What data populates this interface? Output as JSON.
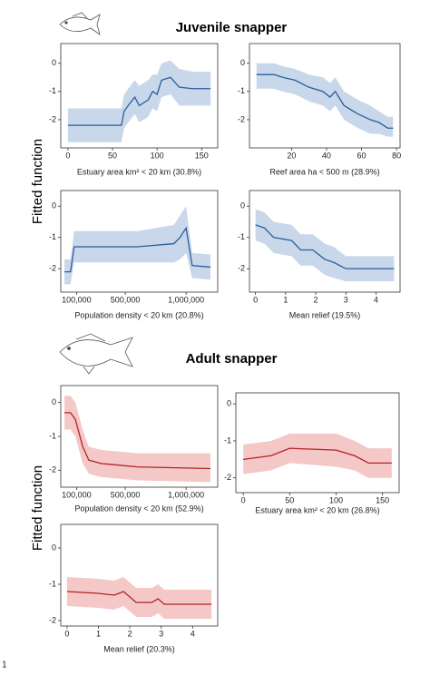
{
  "sections": [
    {
      "title": "Juvenile snapper",
      "y_label": "Fitted function"
    },
    {
      "title": "Adult snapper",
      "y_label": "Fitted function"
    }
  ],
  "figure_number": "1",
  "chart_data": [
    {
      "type": "line",
      "x_label": "Estuary area  km² < 20 km (30.8%)",
      "x": [
        0,
        30,
        60,
        63,
        70,
        75,
        80,
        90,
        95,
        100,
        105,
        115,
        125,
        140,
        160
      ],
      "series": [
        {
          "color": "#2b5c9e",
          "band_color": "#c8d8ea",
          "values": [
            -2.2,
            -2.2,
            -2.2,
            -1.7,
            -1.4,
            -1.2,
            -1.5,
            -1.3,
            -1.0,
            -1.1,
            -0.6,
            -0.5,
            -0.85,
            -0.9,
            -0.9
          ],
          "upper": [
            -1.6,
            -1.6,
            -1.6,
            -1.1,
            -0.8,
            -0.6,
            -0.8,
            -0.6,
            -0.4,
            -0.4,
            0.0,
            0.1,
            -0.2,
            -0.3,
            -0.3
          ],
          "lower": [
            -2.8,
            -2.8,
            -2.8,
            -2.3,
            -2.0,
            -1.8,
            -2.1,
            -1.9,
            -1.6,
            -1.7,
            -1.2,
            -1.1,
            -1.5,
            -1.5,
            -1.5
          ]
        }
      ],
      "xlim": [
        -8,
        168
      ],
      "xticks": [
        0,
        50,
        100,
        150
      ],
      "ylim": [
        -3.0,
        0.7
      ],
      "yticks": [
        -2,
        -1,
        0
      ]
    },
    {
      "type": "line",
      "x_label": "Reef area ha < 500 m (28.9%)",
      "x": [
        0,
        10,
        15,
        22,
        30,
        38,
        42,
        45,
        50,
        58,
        65,
        70,
        75,
        78
      ],
      "series": [
        {
          "color": "#2b5c9e",
          "band_color": "#c8d8ea",
          "values": [
            -0.4,
            -0.4,
            -0.5,
            -0.6,
            -0.85,
            -1.0,
            -1.2,
            -1.0,
            -1.5,
            -1.8,
            -2.0,
            -2.1,
            -2.3,
            -2.3
          ],
          "upper": [
            0.0,
            0.0,
            -0.1,
            -0.2,
            -0.4,
            -0.5,
            -0.7,
            -0.5,
            -1.0,
            -1.3,
            -1.5,
            -1.7,
            -1.9,
            -1.9
          ],
          "lower": [
            -0.9,
            -0.9,
            -1.0,
            -1.1,
            -1.35,
            -1.5,
            -1.7,
            -1.5,
            -2.0,
            -2.3,
            -2.5,
            -2.5,
            -2.6,
            -2.6
          ]
        }
      ],
      "xlim": [
        -4,
        82
      ],
      "xticks": [
        20,
        40,
        60,
        80
      ],
      "ylim": [
        -3.0,
        0.7
      ],
      "yticks": [
        -2,
        -1,
        0
      ]
    },
    {
      "type": "line",
      "x_label": "Population density < 20 km (20.8%)",
      "x": [
        0,
        50000,
        80000,
        300000,
        600000,
        900000,
        950000,
        1000000,
        1050000,
        1200000
      ],
      "series": [
        {
          "color": "#2b5c9e",
          "band_color": "#c8d8ea",
          "values": [
            -2.1,
            -2.1,
            -1.3,
            -1.3,
            -1.3,
            -1.2,
            -1.0,
            -0.7,
            -1.9,
            -1.95
          ],
          "upper": [
            -1.7,
            -1.7,
            -0.8,
            -0.8,
            -0.8,
            -0.6,
            -0.3,
            0.0,
            -1.5,
            -1.55
          ],
          "lower": [
            -2.5,
            -2.5,
            -1.8,
            -1.8,
            -1.8,
            -1.8,
            -1.7,
            -1.5,
            -2.3,
            -2.35
          ]
        }
      ],
      "xlim": [
        -30000,
        1260000
      ],
      "xticks": [
        {
          "value": 100000,
          "label": "100,000"
        },
        {
          "value": 500000,
          "label": "500,000"
        },
        {
          "value": 1000000,
          "label": "1,000,000"
        }
      ],
      "ylim": [
        -2.75,
        0.5
      ],
      "yticks": [
        -2,
        -1,
        0
      ]
    },
    {
      "type": "line",
      "x_label": "Mean relief (19.5%)",
      "x": [
        0,
        0.3,
        0.6,
        1.2,
        1.5,
        1.9,
        2.3,
        2.6,
        3.0,
        4.6
      ],
      "series": [
        {
          "color": "#2b5c9e",
          "band_color": "#c8d8ea",
          "values": [
            -0.6,
            -0.7,
            -1.0,
            -1.1,
            -1.4,
            -1.4,
            -1.7,
            -1.8,
            -2.0,
            -2.0
          ],
          "upper": [
            -0.1,
            -0.2,
            -0.5,
            -0.6,
            -0.9,
            -0.9,
            -1.2,
            -1.3,
            -1.6,
            -1.6
          ],
          "lower": [
            -1.1,
            -1.2,
            -1.5,
            -1.6,
            -1.9,
            -1.9,
            -2.2,
            -2.3,
            -2.4,
            -2.4
          ]
        }
      ],
      "xlim": [
        -0.2,
        4.8
      ],
      "xticks": [
        0,
        1,
        2,
        3,
        4
      ],
      "ylim": [
        -2.75,
        0.5
      ],
      "yticks": [
        -2,
        -1,
        0
      ]
    },
    {
      "type": "line",
      "x_label": "Population density < 20 km (52.9%)",
      "x": [
        0,
        50000,
        90000,
        150000,
        200000,
        300000,
        600000,
        1200000
      ],
      "series": [
        {
          "color": "#b22222",
          "band_color": "#f5c8c8",
          "values": [
            -0.3,
            -0.3,
            -0.5,
            -1.3,
            -1.7,
            -1.8,
            -1.9,
            -1.95
          ],
          "upper": [
            0.2,
            0.2,
            0.0,
            -0.8,
            -1.3,
            -1.4,
            -1.5,
            -1.5
          ],
          "lower": [
            -0.8,
            -0.8,
            -1.0,
            -1.8,
            -2.1,
            -2.2,
            -2.3,
            -2.35
          ]
        }
      ],
      "xlim": [
        -30000,
        1260000
      ],
      "xticks": [
        {
          "value": 100000,
          "label": "100,000"
        },
        {
          "value": 500000,
          "label": "500,000"
        },
        {
          "value": 1000000,
          "label": "1,000,000"
        }
      ],
      "ylim": [
        -2.5,
        0.5
      ],
      "yticks": [
        -2,
        -1,
        0
      ]
    },
    {
      "type": "line",
      "x_label": "Estuary area  km²  < 20 km (26.8%)",
      "x": [
        0,
        30,
        50,
        100,
        120,
        135,
        160
      ],
      "series": [
        {
          "color": "#b22222",
          "band_color": "#f5c8c8",
          "values": [
            -1.5,
            -1.4,
            -1.2,
            -1.25,
            -1.4,
            -1.6,
            -1.6
          ],
          "upper": [
            -1.1,
            -1.0,
            -0.8,
            -0.8,
            -1.0,
            -1.2,
            -1.2
          ],
          "lower": [
            -1.9,
            -1.8,
            -1.6,
            -1.7,
            -1.8,
            -2.0,
            -2.0
          ]
        }
      ],
      "xlim": [
        -8,
        168
      ],
      "xticks": [
        0,
        50,
        100,
        150
      ],
      "ylim": [
        -2.4,
        0.3
      ],
      "yticks": [
        -2,
        -1,
        0
      ]
    },
    {
      "type": "line",
      "x_label": "Mean relief (20.3%)",
      "x": [
        0,
        1,
        1.5,
        1.8,
        2.2,
        2.7,
        2.9,
        3.1,
        4.6
      ],
      "series": [
        {
          "color": "#b22222",
          "band_color": "#f5c8c8",
          "values": [
            -1.2,
            -1.25,
            -1.3,
            -1.2,
            -1.5,
            -1.5,
            -1.4,
            -1.55,
            -1.55
          ],
          "upper": [
            -0.8,
            -0.85,
            -0.9,
            -0.8,
            -1.1,
            -1.1,
            -1.0,
            -1.15,
            -1.15
          ],
          "lower": [
            -1.6,
            -1.65,
            -1.7,
            -1.6,
            -1.9,
            -1.9,
            -1.8,
            -1.95,
            -1.95
          ]
        }
      ],
      "xlim": [
        -0.2,
        4.8
      ],
      "xticks": [
        0,
        1,
        2,
        3,
        4
      ],
      "ylim": [
        -2.15,
        0.65
      ],
      "yticks": [
        -2,
        -1,
        0
      ]
    }
  ]
}
